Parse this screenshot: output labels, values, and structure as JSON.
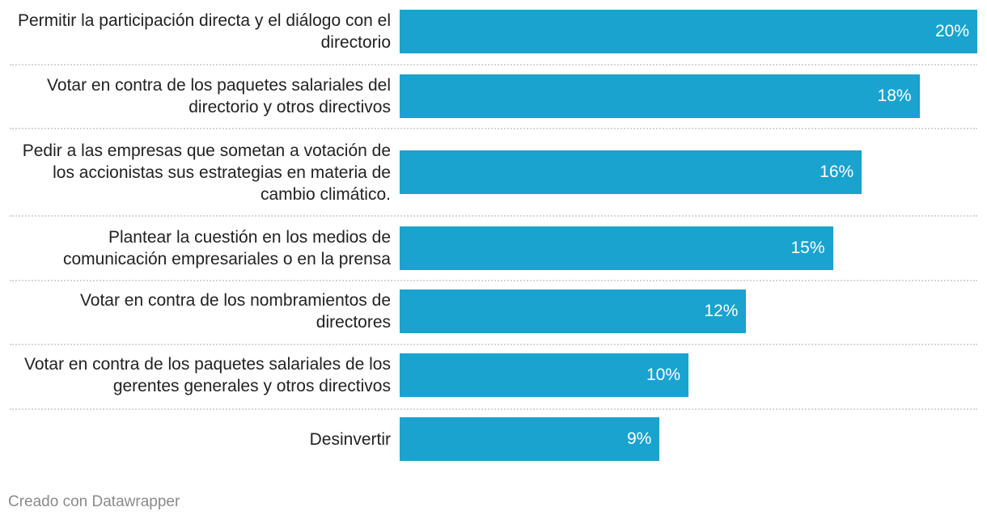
{
  "chart_data": {
    "type": "bar",
    "orientation": "horizontal",
    "categories": [
      "Permitir la participación directa y el diálogo con el directorio",
      "Votar en contra de los paquetes salariales del directorio y otros directivos",
      "Pedir a las empresas que sometan a votación de los accionistas sus estrategias en materia de cambio climático.",
      "Plantear la cuestión en los medios de comunicación empresariales o en la prensa",
      "Votar en contra de los nombramientos de directores",
      "Votar en contra de los paquetes salariales de los gerentes generales y otros directivos",
      "Desinvertir"
    ],
    "values": [
      20,
      18,
      16,
      15,
      12,
      10,
      9
    ],
    "value_labels": [
      "20%",
      "18%",
      "16%",
      "15%",
      "12%",
      "10%",
      "9%"
    ],
    "xlim": [
      0,
      20
    ],
    "bar_color": "#1aa3ce",
    "grid": false
  },
  "footer": "Creado con Datawrapper"
}
